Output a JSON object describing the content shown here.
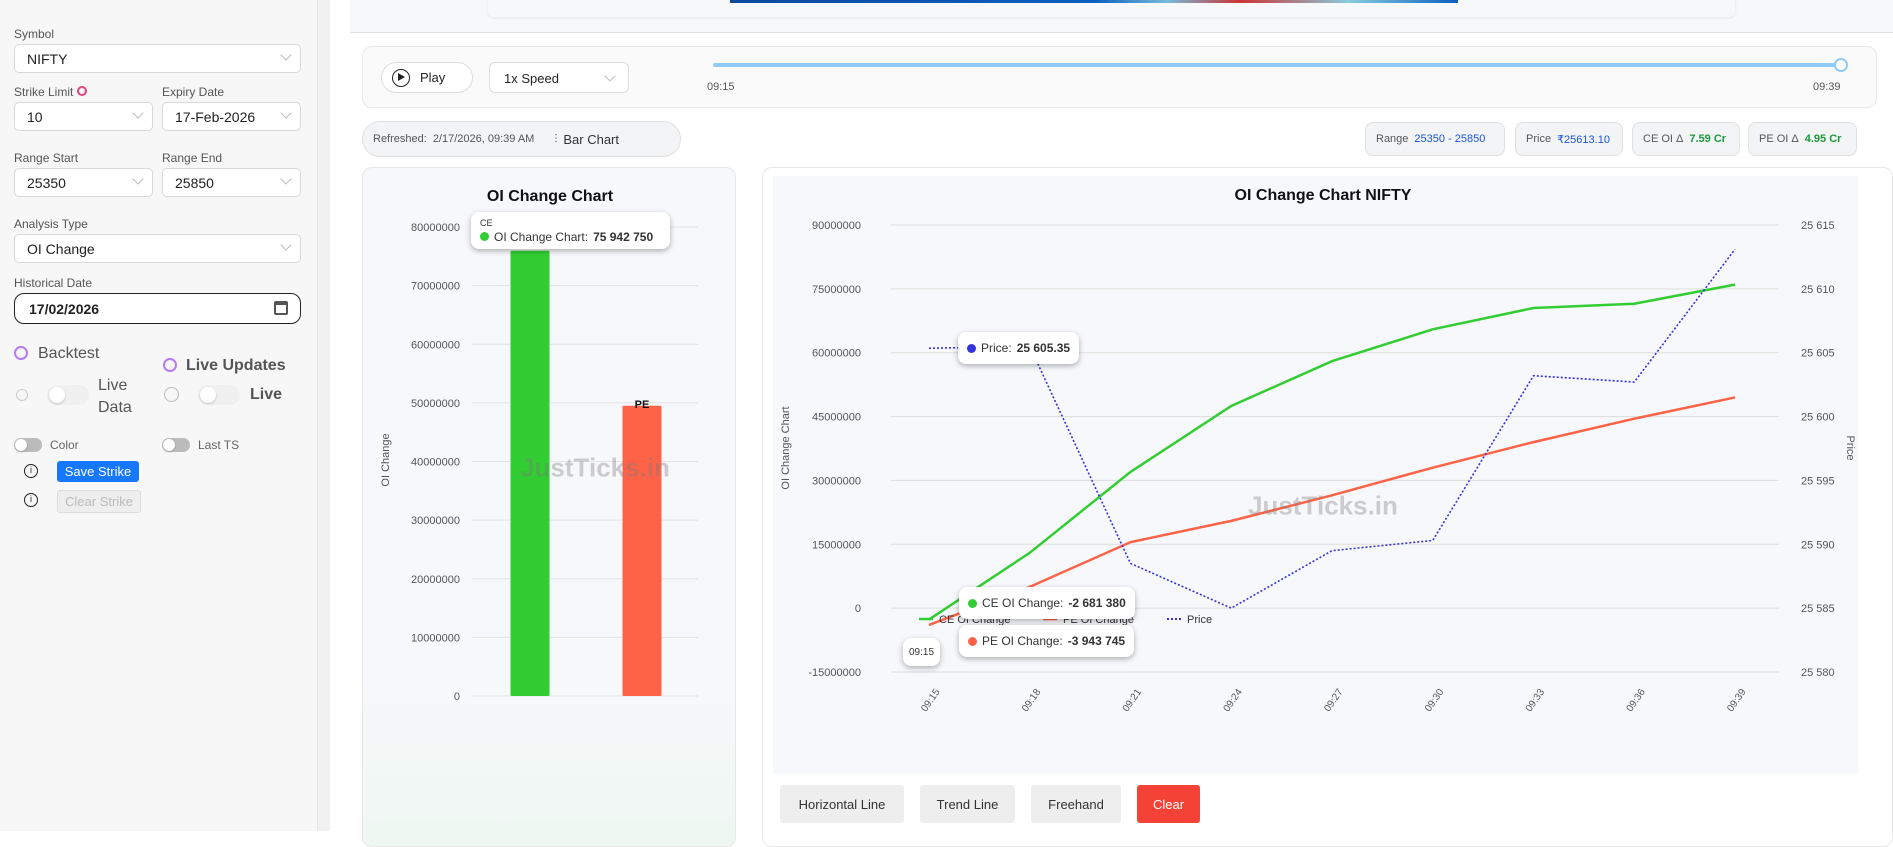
{
  "sidebar": {
    "symbol": {
      "label": "Symbol",
      "value": "NIFTY"
    },
    "strike_limit": {
      "label": "Strike Limit",
      "value": "10"
    },
    "expiry": {
      "label": "Expiry Date",
      "value": "17-Feb-2026"
    },
    "range_start": {
      "label": "Range Start",
      "value": "25350"
    },
    "range_end": {
      "label": "Range End",
      "value": "25850"
    },
    "analysis": {
      "label": "Analysis Type",
      "value": "OI Change"
    },
    "historical": {
      "label": "Historical Date",
      "value": "17/02/2026"
    },
    "backtest": "Backtest",
    "live_updates": "Live Updates",
    "live_data_1": "Live",
    "live_data_2": "Data",
    "live": "Live",
    "color": "Color",
    "last_ts": "Last TS",
    "save_strike": "Save Strike",
    "clear_strike": "Clear Strike"
  },
  "player": {
    "play": "Play",
    "speed": "1x Speed",
    "start": "09:15",
    "end": "09:39",
    "progress": 1.0
  },
  "status": {
    "refreshed_label": "Refreshed:",
    "refreshed": "2/17/2026, 09:39 AM",
    "bar_chart": "Bar Chart"
  },
  "stats": {
    "range_label": "Range",
    "range": "25350 - 25850",
    "price_label": "Price",
    "price": "₹25613.10",
    "ce_label": "CE OI Δ",
    "ce": "7.59 Cr",
    "pe_label": "PE OI Δ",
    "pe": "4.95 Cr"
  },
  "watermark": "JustTicks.in",
  "colors": {
    "ce": "#32cd32",
    "pe": "#ff6347",
    "price": "#3333dd",
    "accent": "#1677ff",
    "clear": "#f44336"
  },
  "chart_data": [
    {
      "type": "bar",
      "title": "OI Change Chart",
      "ylabel": "OI Change",
      "categories": [
        "CE",
        "PE"
      ],
      "values": [
        75942750,
        49500000
      ],
      "yticks": [
        "0",
        "10000000",
        "20000000",
        "30000000",
        "40000000",
        "50000000",
        "60000000",
        "70000000",
        "80000000"
      ],
      "ylim": [
        0,
        80000000
      ],
      "tooltip": {
        "title": "CE",
        "label": "OI Change Chart:",
        "value": "75 942 750"
      }
    },
    {
      "type": "line",
      "title": "OI Change Chart NIFTY",
      "ylabel": "OI Change Chart",
      "y2label": "Price",
      "x": [
        "09:15",
        "09:18",
        "09:21",
        "09:24",
        "09:27",
        "09:30",
        "09:33",
        "09:36",
        "09:39"
      ],
      "series": [
        {
          "name": "CE OI Change",
          "values": [
            -2681380,
            13000000,
            32000000,
            47500000,
            58000000,
            65500000,
            70500000,
            71500000,
            76000000
          ]
        },
        {
          "name": "PE OI Change",
          "values": [
            -3943745,
            5000000,
            15500000,
            20500000,
            26500000,
            33000000,
            39000000,
            44500000,
            49500000
          ]
        },
        {
          "name": "Price",
          "axis": "right",
          "values": [
            25605.35,
            25605.5,
            25588.5,
            25585,
            25589.5,
            25590.3,
            25603.2,
            25602.7,
            25613.1
          ]
        }
      ],
      "ylim": [
        -15000000,
        90000000
      ],
      "y2lim": [
        25580,
        25615
      ],
      "yticks": [
        "-15000000",
        "0",
        "15000000",
        "30000000",
        "45000000",
        "60000000",
        "75000000",
        "90000000"
      ],
      "y2ticks": [
        "25 580",
        "25 585",
        "25 590",
        "25 595",
        "25 600",
        "25 605",
        "25 610",
        "25 615"
      ],
      "tooltips": {
        "price": {
          "label": "Price:",
          "value": "25 605.35"
        },
        "ce": {
          "label": "CE OI Change:",
          "value": "-2 681 380"
        },
        "pe": {
          "label": "PE OI Change:",
          "value": "-3 943 745"
        },
        "x": "09:15"
      }
    }
  ],
  "tools": {
    "horizontal": "Horizontal Line",
    "trend": "Trend Line",
    "freehand": "Freehand",
    "clear": "Clear"
  }
}
